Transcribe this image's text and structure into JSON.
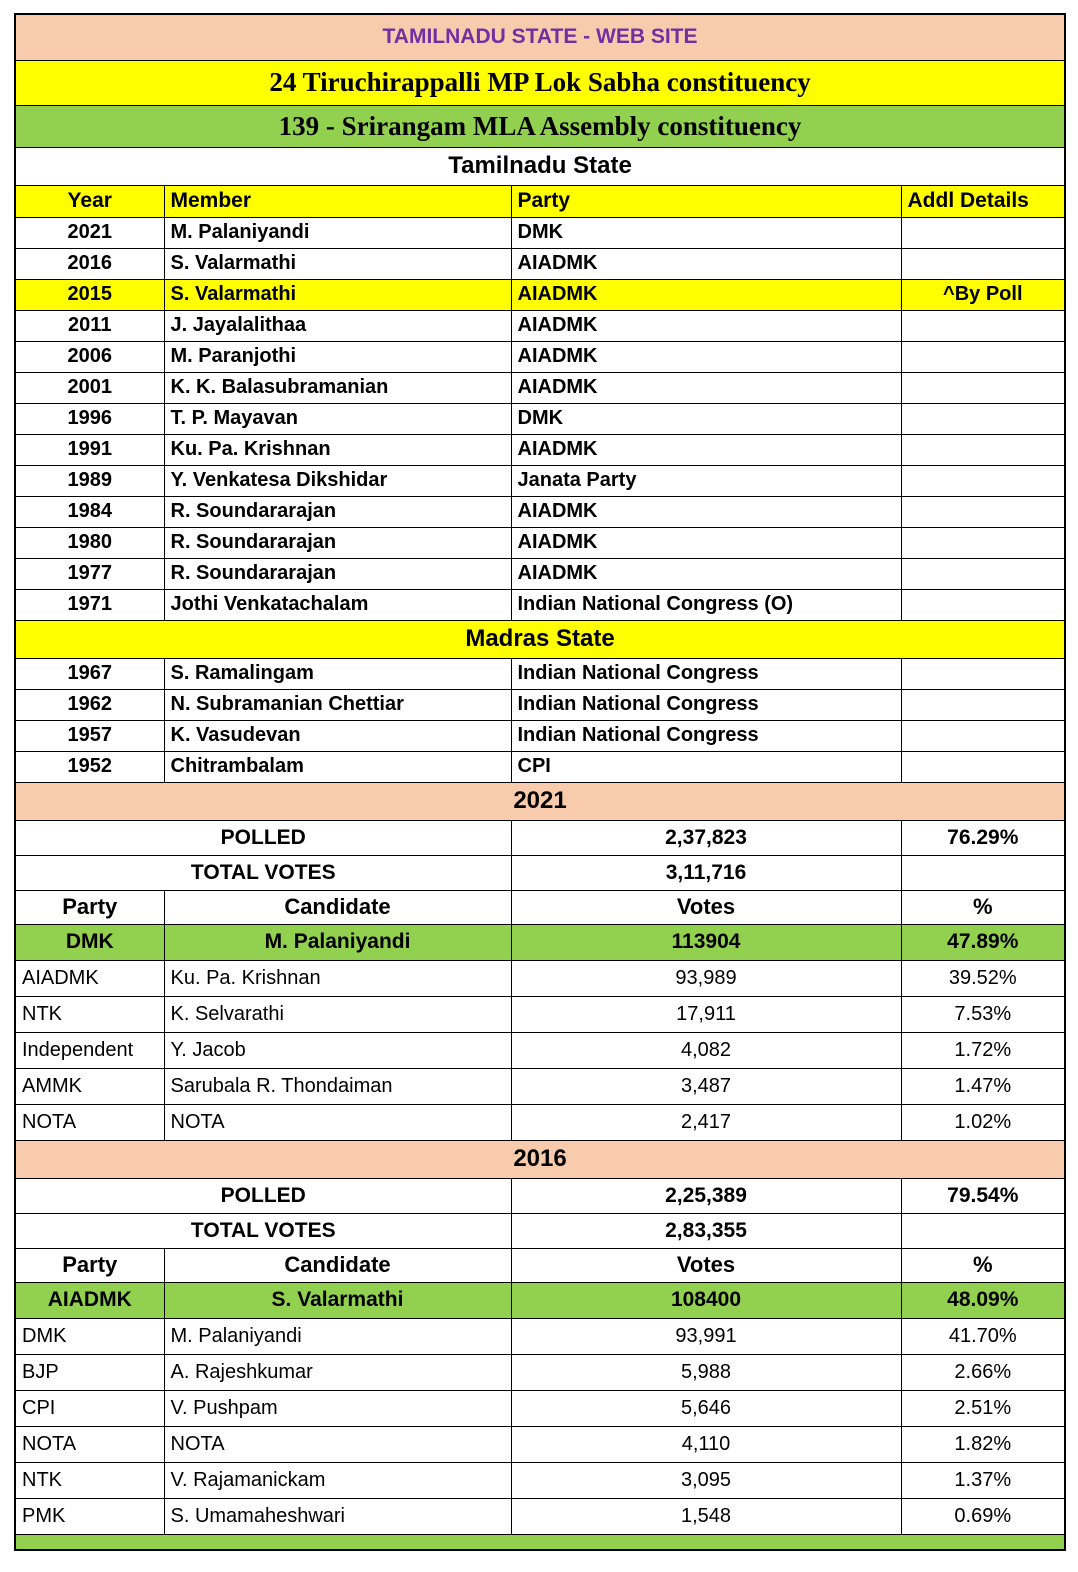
{
  "titles": {
    "site": "TAMILNADU STATE - WEB SITE",
    "mp": "24 Tiruchirappalli MP Lok Sabha constituency",
    "mla": "139 - Srirangam MLA Assembly constituency"
  },
  "history": {
    "columns": [
      "Year",
      "Member",
      "Party",
      "Addl Details"
    ],
    "sections": [
      {
        "title": "Tamilnadu State",
        "header_style": "plain",
        "rows": [
          {
            "year": "2021",
            "member": "M. Palaniyandi",
            "party": "DMK",
            "addl": "",
            "highlight": false
          },
          {
            "year": "2016",
            "member": "S. Valarmathi",
            "party": "AIADMK",
            "addl": "",
            "highlight": false
          },
          {
            "year": "2015",
            "member": "S. Valarmathi",
            "party": "AIADMK",
            "addl": "^By Poll",
            "highlight": true
          },
          {
            "year": "2011",
            "member": "J. Jayalalithaa",
            "party": "AIADMK",
            "addl": "",
            "highlight": false
          },
          {
            "year": "2006",
            "member": "M. Paranjothi",
            "party": "AIADMK",
            "addl": "",
            "highlight": false
          },
          {
            "year": "2001",
            "member": "K. K. Balasubramanian",
            "party": "AIADMK",
            "addl": "",
            "highlight": false
          },
          {
            "year": "1996",
            "member": "T. P. Mayavan",
            "party": "DMK",
            "addl": "",
            "highlight": false
          },
          {
            "year": "1991",
            "member": "Ku. Pa. Krishnan",
            "party": "AIADMK",
            "addl": "",
            "highlight": false
          },
          {
            "year": "1989",
            "member": "Y. Venkatesa Dikshidar",
            "party": "Janata Party",
            "addl": "",
            "highlight": false
          },
          {
            "year": "1984",
            "member": "R. Soundararajan",
            "party": "AIADMK",
            "addl": "",
            "highlight": false
          },
          {
            "year": "1980",
            "member": "R. Soundararajan",
            "party": "AIADMK",
            "addl": "",
            "highlight": false
          },
          {
            "year": "1977",
            "member": "R. Soundararajan",
            "party": "AIADMK",
            "addl": "",
            "highlight": false
          },
          {
            "year": "1971",
            "member": "Jothi Venkatachalam",
            "party": "Indian National Congress (O)",
            "addl": "",
            "highlight": false
          }
        ]
      },
      {
        "title": "Madras State",
        "header_style": "yellow",
        "rows": [
          {
            "year": "1967",
            "member": "S. Ramalingam",
            "party": "Indian National Congress",
            "addl": "",
            "highlight": false
          },
          {
            "year": "1962",
            "member": "N. Subramanian Chettiar",
            "party": "Indian National Congress",
            "addl": "",
            "highlight": false
          },
          {
            "year": "1957",
            "member": "K. Vasudevan",
            "party": "Indian National Congress",
            "addl": "",
            "highlight": false
          },
          {
            "year": "1952",
            "member": "Chitrambalam",
            "party": "CPI",
            "addl": "",
            "highlight": false
          }
        ]
      }
    ]
  },
  "elections": [
    {
      "year": "2021",
      "polled_label": "POLLED",
      "polled": "2,37,823",
      "polled_pct": "76.29%",
      "total_label": "TOTAL VOTES",
      "total": "3,11,716",
      "columns": [
        "Party",
        "Candidate",
        "Votes",
        "%"
      ],
      "winner": {
        "party": "DMK",
        "candidate": "M. Palaniyandi",
        "votes": "113904",
        "pct": "47.89%"
      },
      "rows": [
        {
          "party": "AIADMK",
          "candidate": "Ku. Pa. Krishnan",
          "votes": "93,989",
          "pct": "39.52%"
        },
        {
          "party": "NTK",
          "candidate": "K. Selvarathi",
          "votes": "17,911",
          "pct": "7.53%"
        },
        {
          "party": "Independent",
          "candidate": "Y. Jacob",
          "votes": "4,082",
          "pct": "1.72%"
        },
        {
          "party": "AMMK",
          "candidate": "Sarubala R. Thondaiman",
          "votes": "3,487",
          "pct": "1.47%"
        },
        {
          "party": "NOTA",
          "candidate": "NOTA",
          "votes": "2,417",
          "pct": "1.02%"
        }
      ]
    },
    {
      "year": "2016",
      "polled_label": "POLLED",
      "polled": "2,25,389",
      "polled_pct": "79.54%",
      "total_label": "TOTAL VOTES",
      "total": "2,83,355",
      "columns": [
        "Party",
        "Candidate",
        "Votes",
        "%"
      ],
      "winner": {
        "party": "AIADMK",
        "candidate": "S. Valarmathi",
        "votes": "108400",
        "pct": "48.09%"
      },
      "rows": [
        {
          "party": "DMK",
          "candidate": "M. Palaniyandi",
          "votes": "93,991",
          "pct": "41.70%"
        },
        {
          "party": "BJP",
          "candidate": "A. Rajeshkumar",
          "votes": "5,988",
          "pct": "2.66%"
        },
        {
          "party": "CPI",
          "candidate": "V. Pushpam",
          "votes": "5,646",
          "pct": "2.51%"
        },
        {
          "party": "NOTA",
          "candidate": "NOTA",
          "votes": "4,110",
          "pct": "1.82%"
        },
        {
          "party": "NTK",
          "candidate": "V. Rajamanickam",
          "votes": "3,095",
          "pct": "1.37%"
        },
        {
          "party": "PMK",
          "candidate": "S. Umamaheshwari",
          "votes": "1,548",
          "pct": "0.69%"
        }
      ]
    }
  ],
  "colors": {
    "peach": "#F8CBAD",
    "yellow": "#FFFF00",
    "green": "#92D050",
    "purple": "#7030A0",
    "border": "#000000"
  }
}
